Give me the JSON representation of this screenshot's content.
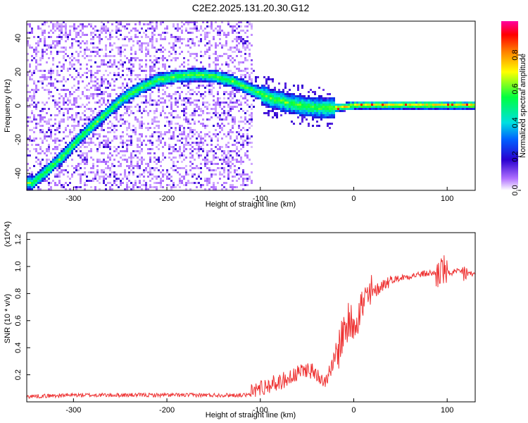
{
  "title": "C2E2.2025.131.20.30.G12",
  "chart_data": [
    {
      "type": "heatmap",
      "xlabel": "Height of straight line (km)",
      "ylabel": "Frequency (Hz)",
      "xlim": [
        -350,
        130
      ],
      "ylim": [
        -50,
        50
      ],
      "xticks": [
        -300,
        -200,
        -100,
        0,
        100
      ],
      "yticks": [
        -40,
        -20,
        0,
        20,
        40
      ],
      "grid": false,
      "colorbar": {
        "label": "Normalized spectral amplitude",
        "range": [
          0,
          1
        ],
        "ticks": [
          "0.0",
          "0.2",
          "0.4",
          "0.6",
          "0.8"
        ],
        "colormap": "rainbow (white→purple→blue→cyan→green→yellow→red→magenta)"
      },
      "ridge": {
        "x": [
          -345,
          -330,
          -310,
          -290,
          -270,
          -250,
          -230,
          -210,
          -190,
          -170,
          -150,
          -130,
          -110,
          -90,
          -70,
          -50,
          -30,
          -10,
          0,
          20,
          50,
          80,
          100,
          130
        ],
        "y": [
          -45,
          -38,
          -28,
          -16,
          -6,
          4,
          11,
          16,
          18,
          19,
          18,
          15,
          10,
          5,
          2,
          0,
          -1,
          0,
          1,
          1,
          1,
          1,
          1,
          1
        ]
      }
    },
    {
      "type": "line",
      "xlabel": "Height of straight line (km)",
      "ylabel": "SNR (10 * v/v)",
      "ymultiplier": "(x10^4)",
      "xlim": [
        -350,
        130
      ],
      "ylim": [
        0,
        1.25
      ],
      "xticks": [
        -300,
        -200,
        -100,
        0,
        100
      ],
      "yticks": [
        0.2,
        0.4,
        0.6,
        0.8,
        1.0,
        1.2
      ],
      "grid": false,
      "color": "#ee3333",
      "x": [
        -350,
        -300,
        -250,
        -200,
        -150,
        -110,
        -100,
        -80,
        -60,
        -50,
        -40,
        -30,
        -20,
        -10,
        0,
        10,
        20,
        30,
        40,
        60,
        80,
        90,
        95,
        100,
        110,
        120,
        130
      ],
      "y": [
        0.04,
        0.05,
        0.05,
        0.05,
        0.05,
        0.05,
        0.08,
        0.12,
        0.18,
        0.22,
        0.18,
        0.14,
        0.3,
        0.55,
        0.6,
        0.72,
        0.8,
        0.86,
        0.9,
        0.93,
        0.95,
        0.95,
        0.98,
        0.95,
        0.96,
        0.95,
        0.94
      ]
    }
  ]
}
